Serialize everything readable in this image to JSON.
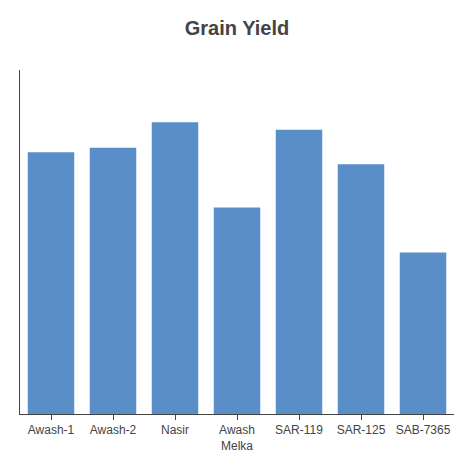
{
  "chart_data": {
    "type": "bar",
    "title": "Grain Yield",
    "categories": [
      "Awash-1",
      "Awash-2",
      "Nasir",
      "Awash\nMelka",
      "SAR-119",
      "SAR-125",
      "SAB-7365"
    ],
    "values": [
      1750,
      1780,
      1950,
      1380,
      1900,
      1670,
      1080
    ],
    "color": "#5A8EC9",
    "ylim": [
      0,
      2300
    ],
    "grid": false,
    "tick_labels": "x"
  }
}
